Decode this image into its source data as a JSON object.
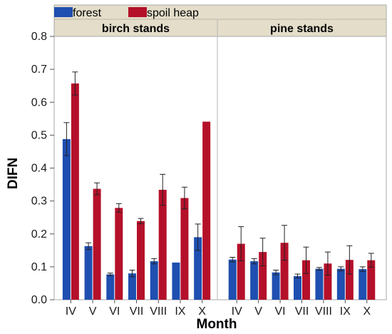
{
  "chart_data": {
    "type": "bar",
    "xlabel": "Month",
    "ylabel": "DIFN",
    "ylim": [
      0,
      0.8
    ],
    "yticks": [
      "0.0",
      "0.1",
      "0.2",
      "0.3",
      "0.4",
      "0.5",
      "0.6",
      "0.7",
      "0.8"
    ],
    "error_bars": true,
    "legend_position": "top-left",
    "series_colors": {
      "forest": "#1f4fb0",
      "spoil heap": "#b5102a"
    },
    "legend": [
      {
        "name": "forest",
        "color": "#1f4fb0"
      },
      {
        "name": "spoil heap",
        "color": "#b5102a"
      }
    ],
    "panels": [
      {
        "title": "birch stands",
        "categories": [
          "IV",
          "V",
          "VI",
          "VII",
          "VIII",
          "IX",
          "X"
        ],
        "series": [
          {
            "name": "forest",
            "values": [
              0.488,
              0.163,
              0.077,
              0.08,
              0.117,
              0.113,
              0.19
            ],
            "errors": [
              0.05,
              0.01,
              0.004,
              0.01,
              0.008,
              0.0,
              0.04
            ]
          },
          {
            "name": "spoil heap",
            "values": [
              0.657,
              0.337,
              0.279,
              0.239,
              0.334,
              0.309,
              0.541
            ],
            "errors": [
              0.035,
              0.018,
              0.013,
              0.008,
              0.047,
              0.033,
              0.0
            ]
          }
        ]
      },
      {
        "title": "pine stands",
        "categories": [
          "IV",
          "V",
          "VI",
          "VII",
          "VIII",
          "IX",
          "X"
        ],
        "series": [
          {
            "name": "forest",
            "values": [
              0.122,
              0.117,
              0.083,
              0.072,
              0.094,
              0.094,
              0.093
            ],
            "errors": [
              0.007,
              0.008,
              0.007,
              0.006,
              0.004,
              0.006,
              0.007
            ]
          },
          {
            "name": "spoil heap",
            "values": [
              0.17,
              0.145,
              0.173,
              0.12,
              0.11,
              0.121,
              0.12
            ],
            "errors": [
              0.052,
              0.042,
              0.053,
              0.04,
              0.035,
              0.043,
              0.021
            ]
          }
        ]
      }
    ]
  }
}
